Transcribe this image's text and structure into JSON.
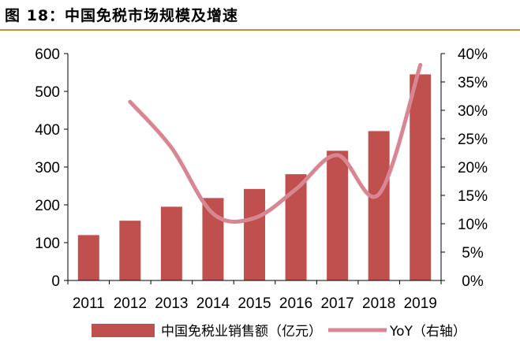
{
  "figure_title": "图 18：中国免税市场规模及增速",
  "colors": {
    "bar": "#c0504d",
    "line": "#d98693",
    "axis": "#000000",
    "title_rule": "#b98f38"
  },
  "chart_data": {
    "type": "bar",
    "title": "中国免税市场规模及增速",
    "categories": [
      "2011",
      "2012",
      "2013",
      "2014",
      "2015",
      "2016",
      "2017",
      "2018",
      "2019"
    ],
    "series": [
      {
        "name": "中国免税业销售额（亿元）",
        "type": "bar",
        "axis": "left",
        "values": [
          120,
          158,
          195,
          218,
          242,
          281,
          343,
          395,
          545
        ]
      },
      {
        "name": "YoY（右轴）",
        "type": "line",
        "axis": "right",
        "values": [
          null,
          31.5,
          23.4,
          11.8,
          11.0,
          16.1,
          22.1,
          15.2,
          38.0
        ]
      }
    ],
    "y_left": {
      "min": 0,
      "max": 600,
      "step": 100,
      "ticks": [
        "0",
        "100",
        "200",
        "300",
        "400",
        "500",
        "600"
      ]
    },
    "y_right": {
      "min": 0,
      "max": 40,
      "step": 5,
      "ticks": [
        "0%",
        "5%",
        "10%",
        "15%",
        "20%",
        "25%",
        "30%",
        "35%",
        "40%"
      ]
    },
    "xlabel": "",
    "ylabel": "",
    "grid": false,
    "legend": "bottom"
  }
}
